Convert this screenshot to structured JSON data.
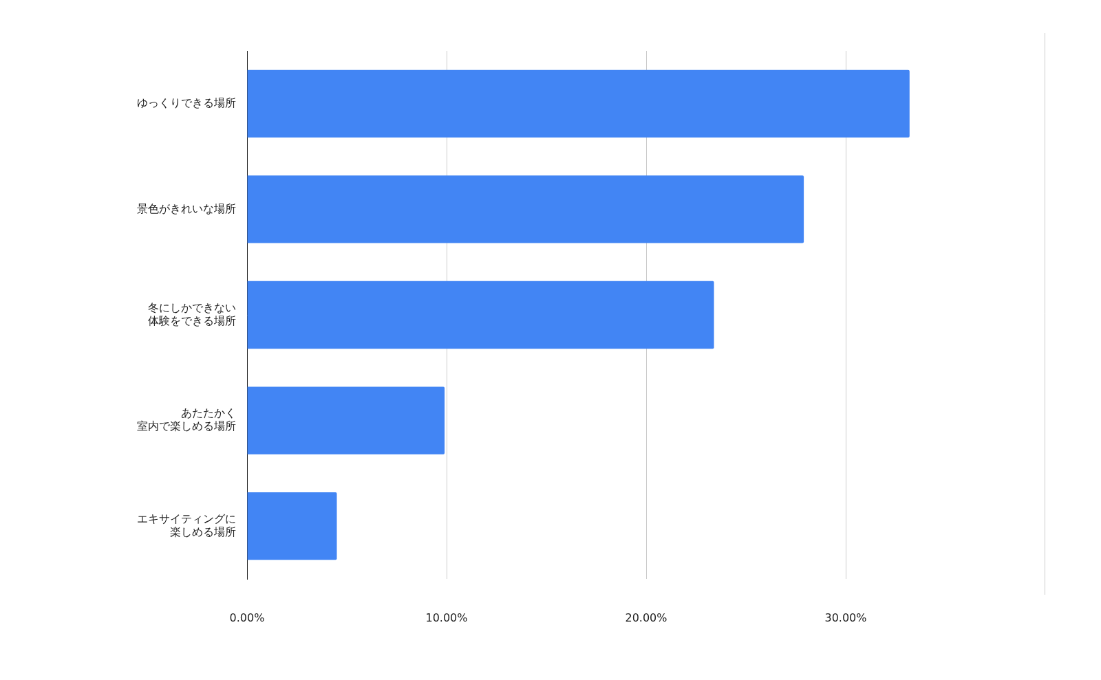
{
  "chart_data": {
    "type": "bar",
    "orientation": "horizontal",
    "categories": [
      "ゆっくりできる場所",
      "景色がきれいな場所",
      "冬にしかできない\n体験をできる場所",
      "あたたかく\n室内で楽しめる場所",
      "エキサイティングに\n楽しめる場所"
    ],
    "values": [
      33.2,
      27.9,
      23.4,
      9.9,
      4.5
    ],
    "color": "#4285f4",
    "xlim": [
      0,
      40
    ],
    "xticks": [
      {
        "value": 0,
        "label": "0.00%"
      },
      {
        "value": 10,
        "label": "10.00%"
      },
      {
        "value": 20,
        "label": "20.00%"
      },
      {
        "value": 30,
        "label": "30.00%"
      }
    ],
    "grid": true,
    "data_labels": false
  }
}
